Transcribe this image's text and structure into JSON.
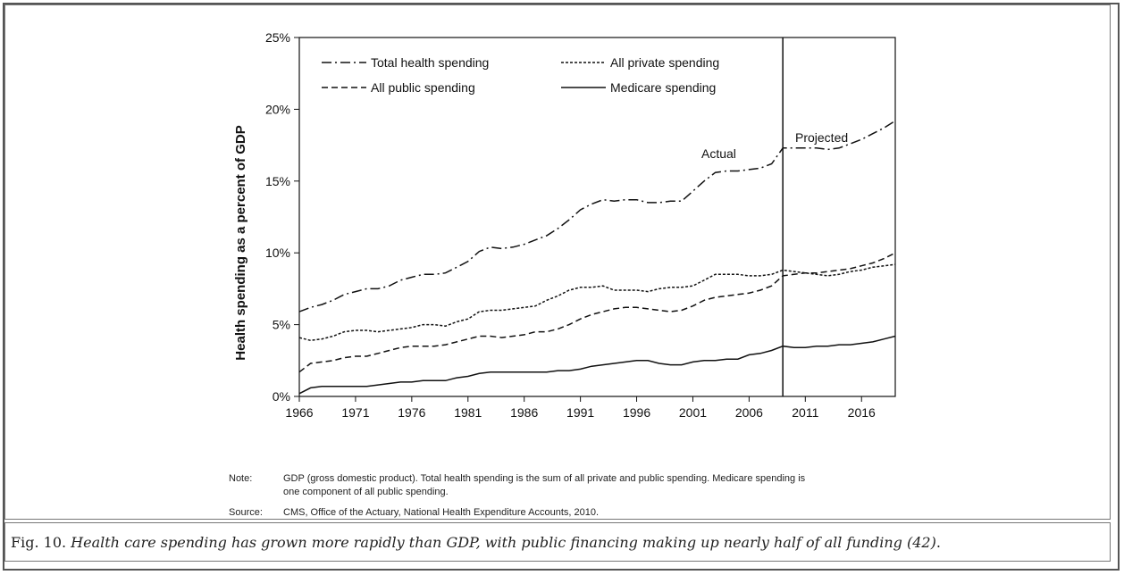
{
  "caption": {
    "label": "Fig. 10.",
    "text": "Health care spending has grown more rapidly than GDP, with public financing making up nearly half of all funding (42)",
    "end": "."
  },
  "notes": {
    "note_label": "Note:",
    "note_text_1": "GDP (gross domestic product). Total health spending is the sum of all private and public spending. Medicare spending is",
    "note_text_2": "one component of all public spending.",
    "source_label": "Source:",
    "source_text": "CMS, Office of the Actuary, National Health Expenditure Accounts, 2010."
  },
  "chart_data": {
    "type": "line",
    "ylabel": "Health spending as a percent of GDP",
    "xlabel": "",
    "xlim": [
      1966,
      2019
    ],
    "ylim": [
      0,
      25
    ],
    "x_ticks": [
      "1966",
      "1971",
      "1976",
      "1981",
      "1986",
      "1991",
      "1996",
      "2001",
      "2006",
      "2011",
      "2016"
    ],
    "y_ticks": [
      "0%",
      "5%",
      "10%",
      "15%",
      "20%",
      "25%"
    ],
    "annotations": {
      "actual": "Actual",
      "projected": "Projected",
      "divider_year": 2009
    },
    "legend_position": "top",
    "series": [
      {
        "name": "Total health spending",
        "dash": "dashdot",
        "x": [
          1966,
          1967,
          1968,
          1969,
          1970,
          1971,
          1972,
          1973,
          1974,
          1975,
          1976,
          1977,
          1978,
          1979,
          1980,
          1981,
          1982,
          1983,
          1984,
          1985,
          1986,
          1987,
          1988,
          1989,
          1990,
          1991,
          1992,
          1993,
          1994,
          1995,
          1996,
          1997,
          1998,
          1999,
          2000,
          2001,
          2002,
          2003,
          2004,
          2005,
          2006,
          2007,
          2008,
          2009,
          2010,
          2011,
          2012,
          2013,
          2014,
          2015,
          2016,
          2017,
          2018,
          2019
        ],
        "y": [
          5.9,
          6.2,
          6.4,
          6.7,
          7.1,
          7.3,
          7.5,
          7.5,
          7.7,
          8.1,
          8.3,
          8.5,
          8.5,
          8.6,
          9.0,
          9.4,
          10.1,
          10.4,
          10.3,
          10.4,
          10.6,
          10.9,
          11.2,
          11.7,
          12.3,
          13.0,
          13.4,
          13.7,
          13.6,
          13.7,
          13.7,
          13.5,
          13.5,
          13.6,
          13.6,
          14.3,
          15.0,
          15.6,
          15.7,
          15.7,
          15.8,
          15.9,
          16.2,
          17.3,
          17.3,
          17.3,
          17.3,
          17.2,
          17.3,
          17.6,
          17.9,
          18.3,
          18.7,
          19.2
        ]
      },
      {
        "name": "All private spending",
        "dash": "dotted",
        "x": [
          1966,
          1967,
          1968,
          1969,
          1970,
          1971,
          1972,
          1973,
          1974,
          1975,
          1976,
          1977,
          1978,
          1979,
          1980,
          1981,
          1982,
          1983,
          1984,
          1985,
          1986,
          1987,
          1988,
          1989,
          1990,
          1991,
          1992,
          1993,
          1994,
          1995,
          1996,
          1997,
          1998,
          1999,
          2000,
          2001,
          2002,
          2003,
          2004,
          2005,
          2006,
          2007,
          2008,
          2009,
          2010,
          2011,
          2012,
          2013,
          2014,
          2015,
          2016,
          2017,
          2018,
          2019
        ],
        "y": [
          4.1,
          3.9,
          4.0,
          4.2,
          4.5,
          4.6,
          4.6,
          4.5,
          4.6,
          4.7,
          4.8,
          5.0,
          5.0,
          4.9,
          5.2,
          5.4,
          5.9,
          6.0,
          6.0,
          6.1,
          6.2,
          6.3,
          6.7,
          7.0,
          7.4,
          7.6,
          7.6,
          7.7,
          7.4,
          7.4,
          7.4,
          7.3,
          7.5,
          7.6,
          7.6,
          7.7,
          8.1,
          8.5,
          8.5,
          8.5,
          8.4,
          8.4,
          8.5,
          8.8,
          8.7,
          8.6,
          8.5,
          8.4,
          8.5,
          8.7,
          8.8,
          9.0,
          9.1,
          9.2
        ]
      },
      {
        "name": "All public spending",
        "dash": "dashed",
        "x": [
          1966,
          1967,
          1968,
          1969,
          1970,
          1971,
          1972,
          1973,
          1974,
          1975,
          1976,
          1977,
          1978,
          1979,
          1980,
          1981,
          1982,
          1983,
          1984,
          1985,
          1986,
          1987,
          1988,
          1989,
          1990,
          1991,
          1992,
          1993,
          1994,
          1995,
          1996,
          1997,
          1998,
          1999,
          2000,
          2001,
          2002,
          2003,
          2004,
          2005,
          2006,
          2007,
          2008,
          2009,
          2010,
          2011,
          2012,
          2013,
          2014,
          2015,
          2016,
          2017,
          2018,
          2019
        ],
        "y": [
          1.7,
          2.3,
          2.4,
          2.5,
          2.7,
          2.8,
          2.8,
          3.0,
          3.2,
          3.4,
          3.5,
          3.5,
          3.5,
          3.6,
          3.8,
          4.0,
          4.2,
          4.2,
          4.1,
          4.2,
          4.3,
          4.5,
          4.5,
          4.7,
          5.0,
          5.4,
          5.7,
          5.9,
          6.1,
          6.2,
          6.2,
          6.1,
          6.0,
          5.9,
          6.0,
          6.3,
          6.7,
          6.9,
          7.0,
          7.1,
          7.2,
          7.4,
          7.7,
          8.4,
          8.5,
          8.6,
          8.6,
          8.7,
          8.8,
          8.9,
          9.1,
          9.3,
          9.6,
          10.0
        ]
      },
      {
        "name": "Medicare spending",
        "dash": "solid",
        "x": [
          1966,
          1967,
          1968,
          1969,
          1970,
          1971,
          1972,
          1973,
          1974,
          1975,
          1976,
          1977,
          1978,
          1979,
          1980,
          1981,
          1982,
          1983,
          1984,
          1985,
          1986,
          1987,
          1988,
          1989,
          1990,
          1991,
          1992,
          1993,
          1994,
          1995,
          1996,
          1997,
          1998,
          1999,
          2000,
          2001,
          2002,
          2003,
          2004,
          2005,
          2006,
          2007,
          2008,
          2009,
          2010,
          2011,
          2012,
          2013,
          2014,
          2015,
          2016,
          2017,
          2018,
          2019
        ],
        "y": [
          0.2,
          0.6,
          0.7,
          0.7,
          0.7,
          0.7,
          0.7,
          0.8,
          0.9,
          1.0,
          1.0,
          1.1,
          1.1,
          1.1,
          1.3,
          1.4,
          1.6,
          1.7,
          1.7,
          1.7,
          1.7,
          1.7,
          1.7,
          1.8,
          1.8,
          1.9,
          2.1,
          2.2,
          2.3,
          2.4,
          2.5,
          2.5,
          2.3,
          2.2,
          2.2,
          2.4,
          2.5,
          2.5,
          2.6,
          2.6,
          2.9,
          3.0,
          3.2,
          3.5,
          3.4,
          3.4,
          3.5,
          3.5,
          3.6,
          3.6,
          3.7,
          3.8,
          4.0,
          4.2
        ]
      }
    ]
  }
}
